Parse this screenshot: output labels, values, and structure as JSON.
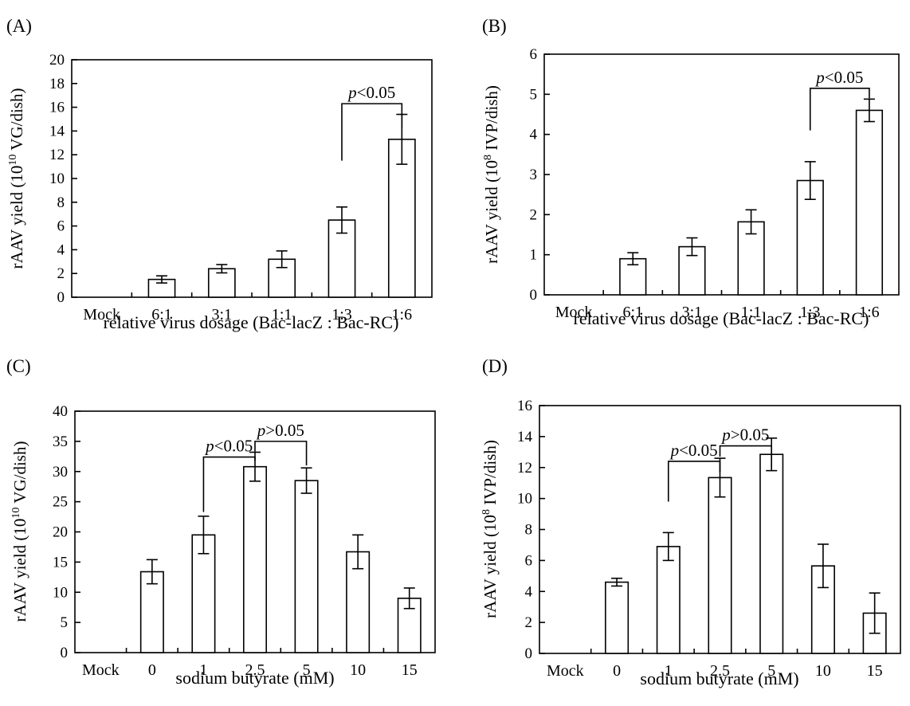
{
  "chart_data": [
    {
      "type": "bar",
      "panel_label": "(A)",
      "categories": [
        "Mock",
        "6:1",
        "3:1",
        "1:1",
        "1:3",
        "1:6"
      ],
      "values": [
        0,
        1.5,
        2.4,
        3.2,
        6.5,
        13.3
      ],
      "errors": [
        0,
        0.3,
        0.35,
        0.7,
        1.1,
        2.1
      ],
      "ylabel": {
        "pre": "rAAV yield (10",
        "sup": "10",
        "post": " VG/dish)"
      },
      "xlabel": "relative virus dosage (Bac-lacZ : Bac-RC)",
      "ylim": [
        0,
        20
      ],
      "yticks": [
        0,
        2,
        4,
        6,
        8,
        10,
        12,
        14,
        16,
        18,
        20
      ],
      "annotations": [
        {
          "from": 4,
          "to": 5,
          "left_y": 11.5,
          "right_y": 14.2,
          "top_y": 16.3,
          "text_italic": "p",
          "text_rest": "<0.05"
        }
      ]
    },
    {
      "type": "bar",
      "panel_label": "(B)",
      "categories": [
        "Mock",
        "6:1",
        "3:1",
        "1:1",
        "1:3",
        "1:6"
      ],
      "values": [
        0,
        0.9,
        1.2,
        1.82,
        2.85,
        4.6
      ],
      "errors": [
        0,
        0.15,
        0.22,
        0.3,
        0.47,
        0.28
      ],
      "ylabel": {
        "pre": "rAAV yield (10",
        "sup": "8",
        "post": " IVP/dish)"
      },
      "xlabel": "relative virus dosage (Bac-lacZ : Bac-RC)",
      "ylim": [
        0,
        6
      ],
      "yticks": [
        0,
        1,
        2,
        3,
        4,
        5,
        6
      ],
      "annotations": [
        {
          "from": 4,
          "to": 5,
          "left_y": 4.1,
          "right_y": 4.9,
          "top_y": 5.15,
          "text_italic": "p",
          "text_rest": "<0.05"
        }
      ]
    },
    {
      "type": "bar",
      "panel_label": "(C)",
      "categories": [
        "Mock",
        "0",
        "1",
        "2.5",
        "5",
        "10",
        "15"
      ],
      "values": [
        0,
        13.4,
        19.5,
        30.8,
        28.5,
        16.7,
        9.0
      ],
      "errors": [
        0,
        2.0,
        3.1,
        2.4,
        2.1,
        2.8,
        1.7
      ],
      "ylabel": {
        "pre": "rAAV yield (10",
        "sup": "10",
        "post": " VG/dish)"
      },
      "xlabel": "sodium butyrate (mM)",
      "ylim": [
        0,
        40
      ],
      "yticks": [
        0,
        5,
        10,
        15,
        20,
        25,
        30,
        35,
        40
      ],
      "annotations": [
        {
          "from": 2,
          "to": 3,
          "left_y": 23.3,
          "right_y": 31.8,
          "top_y": 32.4,
          "text_italic": "p",
          "text_rest": "<0.05"
        },
        {
          "from": 3,
          "to": 4,
          "left_y": 33.3,
          "right_y": 31.0,
          "top_y": 35.0,
          "text_italic": "p",
          "text_rest": ">0.05"
        }
      ]
    },
    {
      "type": "bar",
      "panel_label": "(D)",
      "categories": [
        "Mock",
        "0",
        "1",
        "2.5",
        "5",
        "10",
        "15"
      ],
      "values": [
        0,
        4.6,
        6.9,
        11.35,
        12.85,
        5.65,
        2.6
      ],
      "errors": [
        0,
        0.25,
        0.9,
        1.25,
        1.05,
        1.4,
        1.3
      ],
      "ylabel": {
        "pre": "rAAV yield (10",
        "sup": "8",
        "post": " IVP/dish)"
      },
      "xlabel": "sodium butyrate (mM)",
      "ylim": [
        0,
        16
      ],
      "yticks": [
        0,
        2,
        4,
        6,
        8,
        10,
        12,
        14,
        16
      ],
      "annotations": [
        {
          "from": 2,
          "to": 3,
          "left_y": 9.8,
          "right_y": 11.7,
          "top_y": 12.4,
          "text_italic": "p",
          "text_rest": "<0.05"
        },
        {
          "from": 3,
          "to": 4,
          "left_y": 12.7,
          "right_y": 12.0,
          "top_y": 13.4,
          "text_italic": "p",
          "text_rest": ">0.05"
        }
      ]
    }
  ]
}
